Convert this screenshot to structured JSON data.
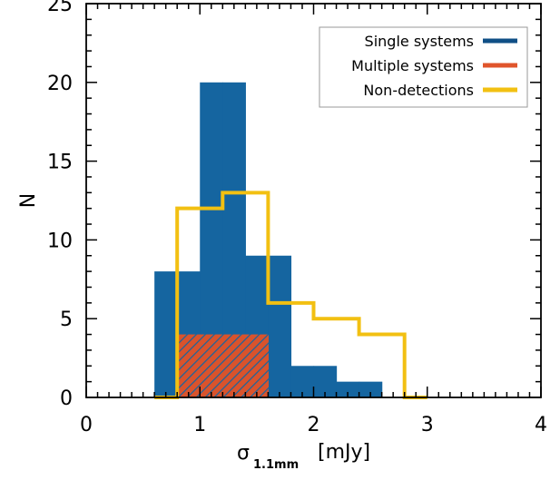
{
  "chart_data": {
    "type": "bar",
    "histogram": true,
    "xlabel": "σ",
    "xlabel_sub": "1.1mm",
    "xlabel_unit": "[mJy]",
    "ylabel": "N",
    "xlim": [
      0,
      4
    ],
    "ylim": [
      0,
      25
    ],
    "x_ticks": [
      "0",
      "1",
      "2",
      "3",
      "4"
    ],
    "y_ticks": [
      "0",
      "5",
      "10",
      "15",
      "20",
      "25"
    ],
    "bin_edges": [
      0.6,
      0.8,
      1.0,
      1.2,
      1.4,
      1.6,
      1.8,
      2.0,
      2.2,
      2.4,
      2.6,
      2.8,
      3.0
    ],
    "bins": [
      {
        "x0": 0.6,
        "x1": 0.8
      },
      {
        "x0": 0.8,
        "x1": 1.0
      },
      {
        "x0": 1.0,
        "x1": 1.2
      },
      {
        "x0": 1.2,
        "x1": 1.4
      },
      {
        "x0": 1.4,
        "x1": 1.6
      },
      {
        "x0": 1.6,
        "x1": 1.8
      },
      {
        "x0": 1.8,
        "x1": 2.0
      },
      {
        "x0": 2.0,
        "x1": 2.2
      },
      {
        "x0": 2.2,
        "x1": 2.4
      },
      {
        "x0": 2.4,
        "x1": 2.6
      },
      {
        "x0": 2.6,
        "x1": 2.8
      },
      {
        "x0": 2.8,
        "x1": 3.0
      }
    ],
    "series": [
      {
        "name": "Single systems",
        "style": "filled",
        "color": "#1565a0",
        "values": [
          8,
          8,
          20,
          20,
          9,
          9,
          2,
          2,
          1,
          1,
          0,
          0
        ]
      },
      {
        "name": "Multiple systems",
        "style": "hatched",
        "color": "#d9532c",
        "values": [
          0,
          4,
          4,
          4,
          4,
          0,
          0,
          0,
          0,
          0,
          0,
          0
        ]
      },
      {
        "name": "Non-detections",
        "style": "outline",
        "color": "#f2c012",
        "values": [
          0,
          12,
          12,
          13,
          13,
          6,
          6,
          5,
          5,
          4,
          4,
          0
        ]
      }
    ],
    "legend": {
      "position": "top-right",
      "entries": [
        {
          "label": "Single systems",
          "color": "#0f4f86"
        },
        {
          "label": "Multiple systems",
          "color": "#e0552c"
        },
        {
          "label": "Non-detections",
          "color": "#f2c012"
        }
      ]
    },
    "grid": false
  }
}
